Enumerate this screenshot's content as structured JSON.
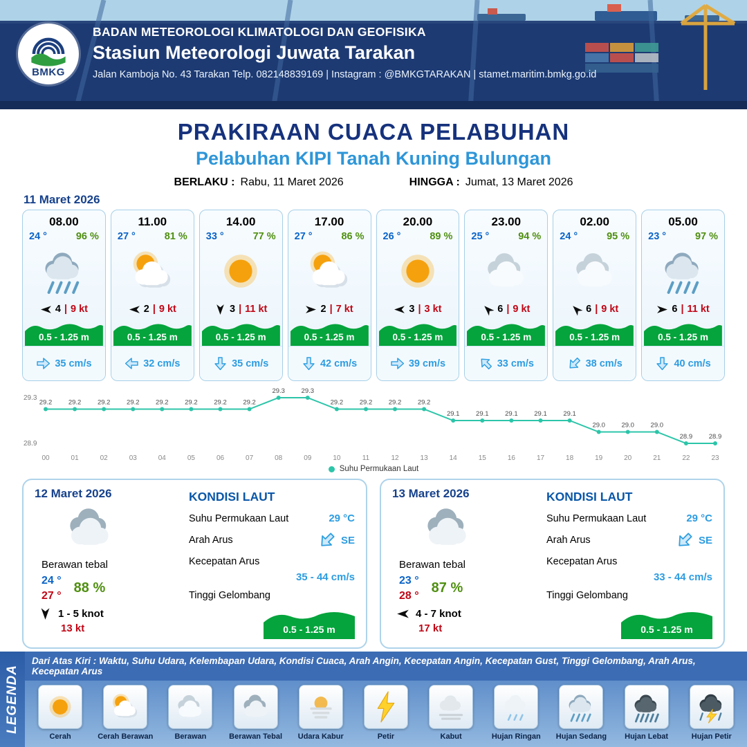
{
  "colors": {
    "accent_navy": "#16327d",
    "accent_blue": "#2e96d8",
    "temp_blue": "#0a64c8",
    "humidity_green": "#4f8f10",
    "alert_red": "#c00515",
    "wave_green": "#05a43c",
    "current_blue": "#2d9ce0",
    "chart_teal": "#2cc5a9"
  },
  "header": {
    "logo_text": "BMKG",
    "org": "BADAN METEOROLOGI KLIMATOLOGI DAN GEOFISIKA",
    "station": "Stasiun Meteorologi Juwata Tarakan",
    "contact": "Jalan Kamboja No. 43 Tarakan  Telp. 082148839169 | Instagram : @BMKGTARAKAN | stamet.maritim.bmkg.go.id"
  },
  "title": {
    "main": "PRAKIRAAN CUACA PELABUHAN",
    "subtitle": "Pelabuhan KIPI Tanah Kuning Bulungan",
    "valid_label": "BERLAKU :",
    "valid_value": "Rabu, 11 Maret 2026",
    "until_label": "HINGGA :",
    "until_value": "Jumat, 13 Maret 2026"
  },
  "forecast": {
    "date": "11 Maret 2026",
    "cards": [
      {
        "time": "08.00",
        "temp": "24 °",
        "humidity": "96 %",
        "weather_icon": "rain-moderate",
        "wind_dir": "left",
        "wind_speed": "4",
        "gust": "9 kt",
        "wave": "0.5 - 1.25 m",
        "current_dir": "right",
        "current": "35 cm/s"
      },
      {
        "time": "11.00",
        "temp": "27 °",
        "humidity": "81 %",
        "weather_icon": "partly-cloudy",
        "wind_dir": "left",
        "wind_speed": "2",
        "gust": "9 kt",
        "wave": "0.5 - 1.25 m",
        "current_dir": "left",
        "current": "32 cm/s"
      },
      {
        "time": "14.00",
        "temp": "33 °",
        "humidity": "77 %",
        "weather_icon": "sunny",
        "wind_dir": "down",
        "wind_speed": "3",
        "gust": "11 kt",
        "wave": "0.5 - 1.25 m",
        "current_dir": "down",
        "current": "35 cm/s"
      },
      {
        "time": "17.00",
        "temp": "27 °",
        "humidity": "86 %",
        "weather_icon": "partly-cloudy",
        "wind_dir": "right",
        "wind_speed": "2",
        "gust": "7 kt",
        "wave": "0.5 - 1.25 m",
        "current_dir": "down",
        "current": "42 cm/s"
      },
      {
        "time": "20.00",
        "temp": "26 °",
        "humidity": "89 %",
        "weather_icon": "sunny",
        "wind_dir": "left",
        "wind_speed": "3",
        "gust": "3 kt",
        "wave": "0.5 - 1.25 m",
        "current_dir": "right",
        "current": "39 cm/s"
      },
      {
        "time": "23.00",
        "temp": "25 °",
        "humidity": "94 %",
        "weather_icon": "cloudy",
        "wind_dir": "up-left",
        "wind_speed": "6",
        "gust": "9 kt",
        "wave": "0.5 - 1.25 m",
        "current_dir": "up-left",
        "current": "33 cm/s"
      },
      {
        "time": "02.00",
        "temp": "24 °",
        "humidity": "95 %",
        "weather_icon": "cloudy",
        "wind_dir": "up-left",
        "wind_speed": "6",
        "gust": "9 kt",
        "wave": "0.5 - 1.25 m",
        "current_dir": "down-left",
        "current": "38 cm/s"
      },
      {
        "time": "05.00",
        "temp": "23 °",
        "humidity": "97 %",
        "weather_icon": "rain-moderate",
        "wind_dir": "right",
        "wind_speed": "6",
        "gust": "11 kt",
        "wave": "0.5 - 1.25 m",
        "current_dir": "down",
        "current": "40 cm/s"
      }
    ]
  },
  "chart_data": {
    "type": "line",
    "title": "",
    "legend": "Suhu Permukaan Laut",
    "x": [
      "00",
      "01",
      "02",
      "03",
      "04",
      "05",
      "06",
      "07",
      "08",
      "09",
      "10",
      "11",
      "12",
      "13",
      "14",
      "15",
      "16",
      "17",
      "18",
      "19",
      "20",
      "21",
      "22",
      "23"
    ],
    "values": [
      29.2,
      29.2,
      29.2,
      29.2,
      29.2,
      29.2,
      29.2,
      29.2,
      29.3,
      29.3,
      29.2,
      29.2,
      29.2,
      29.2,
      29.1,
      29.1,
      29.1,
      29.1,
      29.1,
      29.0,
      29.0,
      29.0,
      28.9,
      28.9
    ],
    "ylim": [
      28.9,
      29.3
    ],
    "yticks": [
      "29.3",
      "28.9"
    ],
    "line_color": "#2cc5a9",
    "grid": false,
    "legend_position": "bottom"
  },
  "daily": [
    {
      "date": "12 Maret 2026",
      "weather_icon": "cloudy-thick",
      "condition": "Berawan tebal",
      "temp_min": "24 °",
      "temp_max": "27 °",
      "humidity": "88 %",
      "wind_dir": "down",
      "wind": "1 - 5 knot",
      "gust": "13 kt",
      "sea": {
        "title": "KONDISI LAUT",
        "sst_label": "Suhu Permukaan Laut",
        "sst": "29 °C",
        "dir_label": "Arah Arus",
        "dir": "SE",
        "dir_icon": "down-left",
        "speed_label": "Kecepatan Arus",
        "speed": "35 - 44 cm/s",
        "wave_label": "Tinggi Gelombang",
        "wave": "0.5 - 1.25 m"
      }
    },
    {
      "date": "13 Maret 2026",
      "weather_icon": "cloudy-thick",
      "condition": "Berawan tebal",
      "temp_min": "23 °",
      "temp_max": "28 °",
      "humidity": "87 %",
      "wind_dir": "left",
      "wind": "4 - 7 knot",
      "gust": "17 kt",
      "sea": {
        "title": "KONDISI LAUT",
        "sst_label": "Suhu Permukaan Laut",
        "sst": "29 °C",
        "dir_label": "Arah Arus",
        "dir": "SE",
        "dir_icon": "down-left",
        "speed_label": "Kecepatan Arus",
        "speed": "33 - 44 cm/s",
        "wave_label": "Tinggi Gelombang",
        "wave": "0.5 - 1.25 m"
      }
    }
  ],
  "legend": {
    "title": "LEGENDA",
    "description": "Dari Atas Kiri : Waktu, Suhu Udara, Kelembapan Udara, Kondisi Cuaca, Arah Angin, Kecepatan Angin, Kecepatan Gust, Tinggi Gelombang, Arah Arus, Kecepatan Arus",
    "items": [
      {
        "label": "Cerah",
        "icon": "sunny"
      },
      {
        "label": "Cerah Berawan",
        "icon": "partly-cloudy"
      },
      {
        "label": "Berawan",
        "icon": "cloudy"
      },
      {
        "label": "Berawan Tebal",
        "icon": "cloudy-thick"
      },
      {
        "label": "Udara Kabur",
        "icon": "hazy"
      },
      {
        "label": "Petir",
        "icon": "lightning"
      },
      {
        "label": "Kabut",
        "icon": "fog"
      },
      {
        "label": "Hujan Ringan",
        "icon": "rain-light"
      },
      {
        "label": "Hujan Sedang",
        "icon": "rain-moderate"
      },
      {
        "label": "Hujan Lebat",
        "icon": "rain-heavy"
      },
      {
        "label": "Hujan Petir",
        "icon": "thunderstorm"
      }
    ]
  }
}
